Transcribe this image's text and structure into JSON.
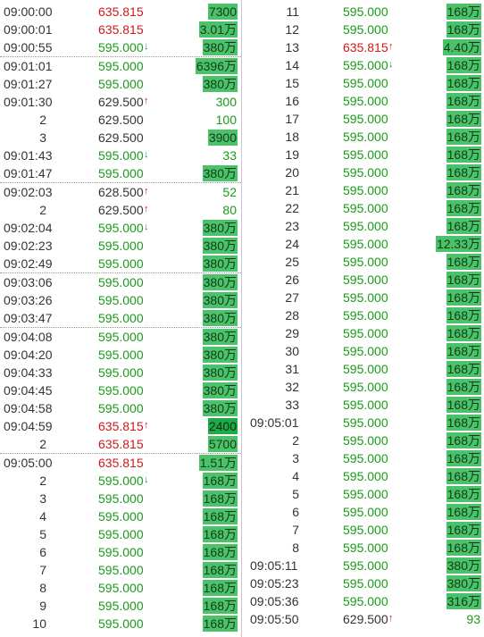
{
  "left_rows": [
    {
      "time": "09:00:00",
      "price": "635.815",
      "pc": "r",
      "dir": "",
      "vol": "7300",
      "vh": "hl",
      "sep": false,
      "idx": false
    },
    {
      "time": "09:00:01",
      "price": "635.815",
      "pc": "r",
      "dir": "",
      "vol": "3.01万",
      "vh": "hl",
      "sep": false,
      "idx": false
    },
    {
      "time": "09:00:55",
      "price": "595.000",
      "pc": "g",
      "dir": "down",
      "vol": "380万",
      "vh": "hl",
      "sep": false,
      "idx": false
    },
    {
      "time": "09:01:01",
      "price": "595.000",
      "pc": "g",
      "dir": "",
      "vol": "6396万",
      "vh": "hl",
      "sep": true,
      "idx": false
    },
    {
      "time": "09:01:27",
      "price": "595.000",
      "pc": "g",
      "dir": "",
      "vol": "380万",
      "vh": "hl",
      "sep": false,
      "idx": false
    },
    {
      "time": "09:01:30",
      "price": "629.500",
      "pc": "k",
      "dir": "up",
      "vol": "300",
      "vh": "",
      "sep": false,
      "idx": false
    },
    {
      "time": "2",
      "price": "629.500",
      "pc": "k",
      "dir": "",
      "vol": "100",
      "vh": "",
      "sep": false,
      "idx": true
    },
    {
      "time": "3",
      "price": "629.500",
      "pc": "k",
      "dir": "",
      "vol": "3900",
      "vh": "hl",
      "sep": false,
      "idx": true
    },
    {
      "time": "09:01:43",
      "price": "595.000",
      "pc": "g",
      "dir": "down",
      "vol": "33",
      "vh": "",
      "sep": false,
      "idx": false
    },
    {
      "time": "09:01:47",
      "price": "595.000",
      "pc": "g",
      "dir": "",
      "vol": "380万",
      "vh": "hl",
      "sep": false,
      "idx": false
    },
    {
      "time": "09:02:03",
      "price": "628.500",
      "pc": "k",
      "dir": "up",
      "vol": "52",
      "vh": "",
      "sep": true,
      "idx": false
    },
    {
      "time": "2",
      "price": "629.500",
      "pc": "k",
      "dir": "up",
      "vol": "80",
      "vh": "",
      "sep": false,
      "idx": true
    },
    {
      "time": "09:02:04",
      "price": "595.000",
      "pc": "g",
      "dir": "down",
      "vol": "380万",
      "vh": "hl",
      "sep": false,
      "idx": false
    },
    {
      "time": "09:02:23",
      "price": "595.000",
      "pc": "g",
      "dir": "",
      "vol": "380万",
      "vh": "hl",
      "sep": false,
      "idx": false
    },
    {
      "time": "09:02:49",
      "price": "595.000",
      "pc": "g",
      "dir": "",
      "vol": "380万",
      "vh": "hl",
      "sep": false,
      "idx": false
    },
    {
      "time": "09:03:06",
      "price": "595.000",
      "pc": "g",
      "dir": "",
      "vol": "380万",
      "vh": "hl",
      "sep": true,
      "idx": false
    },
    {
      "time": "09:03:26",
      "price": "595.000",
      "pc": "g",
      "dir": "",
      "vol": "380万",
      "vh": "hl",
      "sep": false,
      "idx": false
    },
    {
      "time": "09:03:47",
      "price": "595.000",
      "pc": "g",
      "dir": "",
      "vol": "380万",
      "vh": "hl",
      "sep": false,
      "idx": false
    },
    {
      "time": "09:04:08",
      "price": "595.000",
      "pc": "g",
      "dir": "",
      "vol": "380万",
      "vh": "hl",
      "sep": true,
      "idx": false
    },
    {
      "time": "09:04:20",
      "price": "595.000",
      "pc": "g",
      "dir": "",
      "vol": "380万",
      "vh": "hl",
      "sep": false,
      "idx": false
    },
    {
      "time": "09:04:33",
      "price": "595.000",
      "pc": "g",
      "dir": "",
      "vol": "380万",
      "vh": "hl",
      "sep": false,
      "idx": false
    },
    {
      "time": "09:04:45",
      "price": "595.000",
      "pc": "g",
      "dir": "",
      "vol": "380万",
      "vh": "hl",
      "sep": false,
      "idx": false
    },
    {
      "time": "09:04:58",
      "price": "595.000",
      "pc": "g",
      "dir": "",
      "vol": "380万",
      "vh": "hl",
      "sep": false,
      "idx": false
    },
    {
      "time": "09:04:59",
      "price": "635.815",
      "pc": "r",
      "dir": "up",
      "vol": "2400",
      "vh": "hl2",
      "sep": false,
      "idx": false
    },
    {
      "time": "2",
      "price": "635.815",
      "pc": "r",
      "dir": "",
      "vol": "5700",
      "vh": "hl",
      "sep": false,
      "idx": true
    },
    {
      "time": "09:05:00",
      "price": "635.815",
      "pc": "r",
      "dir": "",
      "vol": "1.51万",
      "vh": "hl",
      "sep": true,
      "idx": false
    },
    {
      "time": "2",
      "price": "595.000",
      "pc": "g",
      "dir": "down",
      "vol": "168万",
      "vh": "hl",
      "sep": false,
      "idx": true
    },
    {
      "time": "3",
      "price": "595.000",
      "pc": "g",
      "dir": "",
      "vol": "168万",
      "vh": "hl",
      "sep": false,
      "idx": true
    },
    {
      "time": "4",
      "price": "595.000",
      "pc": "g",
      "dir": "",
      "vol": "168万",
      "vh": "hl",
      "sep": false,
      "idx": true
    },
    {
      "time": "5",
      "price": "595.000",
      "pc": "g",
      "dir": "",
      "vol": "168万",
      "vh": "hl",
      "sep": false,
      "idx": true
    },
    {
      "time": "6",
      "price": "595.000",
      "pc": "g",
      "dir": "",
      "vol": "168万",
      "vh": "hl",
      "sep": false,
      "idx": true
    },
    {
      "time": "7",
      "price": "595.000",
      "pc": "g",
      "dir": "",
      "vol": "168万",
      "vh": "hl",
      "sep": false,
      "idx": true
    },
    {
      "time": "8",
      "price": "595.000",
      "pc": "g",
      "dir": "",
      "vol": "168万",
      "vh": "hl",
      "sep": false,
      "idx": true
    },
    {
      "time": "9",
      "price": "595.000",
      "pc": "g",
      "dir": "",
      "vol": "168万",
      "vh": "hl",
      "sep": false,
      "idx": true
    },
    {
      "time": "10",
      "price": "595.000",
      "pc": "g",
      "dir": "",
      "vol": "168万",
      "vh": "hl",
      "sep": false,
      "idx": true
    }
  ],
  "right_rows": [
    {
      "time": "11",
      "price": "595.000",
      "pc": "g",
      "dir": "",
      "vol": "168万",
      "vh": "hl",
      "sep": false,
      "idx": true
    },
    {
      "time": "12",
      "price": "595.000",
      "pc": "g",
      "dir": "",
      "vol": "168万",
      "vh": "hl",
      "sep": false,
      "idx": true
    },
    {
      "time": "13",
      "price": "635.815",
      "pc": "r",
      "dir": "up",
      "vol": "4.40万",
      "vh": "hl",
      "sep": false,
      "idx": true
    },
    {
      "time": "14",
      "price": "595.000",
      "pc": "g",
      "dir": "down",
      "vol": "168万",
      "vh": "hl",
      "sep": false,
      "idx": true
    },
    {
      "time": "15",
      "price": "595.000",
      "pc": "g",
      "dir": "",
      "vol": "168万",
      "vh": "hl",
      "sep": false,
      "idx": true
    },
    {
      "time": "16",
      "price": "595.000",
      "pc": "g",
      "dir": "",
      "vol": "168万",
      "vh": "hl",
      "sep": false,
      "idx": true
    },
    {
      "time": "17",
      "price": "595.000",
      "pc": "g",
      "dir": "",
      "vol": "168万",
      "vh": "hl",
      "sep": false,
      "idx": true
    },
    {
      "time": "18",
      "price": "595.000",
      "pc": "g",
      "dir": "",
      "vol": "168万",
      "vh": "hl",
      "sep": false,
      "idx": true
    },
    {
      "time": "19",
      "price": "595.000",
      "pc": "g",
      "dir": "",
      "vol": "168万",
      "vh": "hl",
      "sep": false,
      "idx": true
    },
    {
      "time": "20",
      "price": "595.000",
      "pc": "g",
      "dir": "",
      "vol": "168万",
      "vh": "hl",
      "sep": false,
      "idx": true
    },
    {
      "time": "21",
      "price": "595.000",
      "pc": "g",
      "dir": "",
      "vol": "168万",
      "vh": "hl",
      "sep": false,
      "idx": true
    },
    {
      "time": "22",
      "price": "595.000",
      "pc": "g",
      "dir": "",
      "vol": "168万",
      "vh": "hl",
      "sep": false,
      "idx": true
    },
    {
      "time": "23",
      "price": "595.000",
      "pc": "g",
      "dir": "",
      "vol": "168万",
      "vh": "hl",
      "sep": false,
      "idx": true
    },
    {
      "time": "24",
      "price": "595.000",
      "pc": "g",
      "dir": "",
      "vol": "12.33万",
      "vh": "hl",
      "sep": false,
      "idx": true
    },
    {
      "time": "25",
      "price": "595.000",
      "pc": "g",
      "dir": "",
      "vol": "168万",
      "vh": "hl",
      "sep": false,
      "idx": true
    },
    {
      "time": "26",
      "price": "595.000",
      "pc": "g",
      "dir": "",
      "vol": "168万",
      "vh": "hl",
      "sep": false,
      "idx": true
    },
    {
      "time": "27",
      "price": "595.000",
      "pc": "g",
      "dir": "",
      "vol": "168万",
      "vh": "hl",
      "sep": false,
      "idx": true
    },
    {
      "time": "28",
      "price": "595.000",
      "pc": "g",
      "dir": "",
      "vol": "168万",
      "vh": "hl",
      "sep": false,
      "idx": true
    },
    {
      "time": "29",
      "price": "595.000",
      "pc": "g",
      "dir": "",
      "vol": "168万",
      "vh": "hl",
      "sep": false,
      "idx": true
    },
    {
      "time": "30",
      "price": "595.000",
      "pc": "g",
      "dir": "",
      "vol": "168万",
      "vh": "hl",
      "sep": false,
      "idx": true
    },
    {
      "time": "31",
      "price": "595.000",
      "pc": "g",
      "dir": "",
      "vol": "168万",
      "vh": "hl",
      "sep": false,
      "idx": true
    },
    {
      "time": "32",
      "price": "595.000",
      "pc": "g",
      "dir": "",
      "vol": "168万",
      "vh": "hl",
      "sep": false,
      "idx": true
    },
    {
      "time": "33",
      "price": "595.000",
      "pc": "g",
      "dir": "",
      "vol": "168万",
      "vh": "hl",
      "sep": false,
      "idx": true
    },
    {
      "time": "09:05:01",
      "price": "595.000",
      "pc": "g",
      "dir": "",
      "vol": "168万",
      "vh": "hl",
      "sep": false,
      "idx": false
    },
    {
      "time": "2",
      "price": "595.000",
      "pc": "g",
      "dir": "",
      "vol": "168万",
      "vh": "hl",
      "sep": false,
      "idx": true
    },
    {
      "time": "3",
      "price": "595.000",
      "pc": "g",
      "dir": "",
      "vol": "168万",
      "vh": "hl",
      "sep": false,
      "idx": true
    },
    {
      "time": "4",
      "price": "595.000",
      "pc": "g",
      "dir": "",
      "vol": "168万",
      "vh": "hl",
      "sep": false,
      "idx": true
    },
    {
      "time": "5",
      "price": "595.000",
      "pc": "g",
      "dir": "",
      "vol": "168万",
      "vh": "hl",
      "sep": false,
      "idx": true
    },
    {
      "time": "6",
      "price": "595.000",
      "pc": "g",
      "dir": "",
      "vol": "168万",
      "vh": "hl",
      "sep": false,
      "idx": true
    },
    {
      "time": "7",
      "price": "595.000",
      "pc": "g",
      "dir": "",
      "vol": "168万",
      "vh": "hl",
      "sep": false,
      "idx": true
    },
    {
      "time": "8",
      "price": "595.000",
      "pc": "g",
      "dir": "",
      "vol": "168万",
      "vh": "hl",
      "sep": false,
      "idx": true
    },
    {
      "time": "09:05:11",
      "price": "595.000",
      "pc": "g",
      "dir": "",
      "vol": "380万",
      "vh": "hl",
      "sep": false,
      "idx": false
    },
    {
      "time": "09:05:23",
      "price": "595.000",
      "pc": "g",
      "dir": "",
      "vol": "380万",
      "vh": "hl",
      "sep": false,
      "idx": false
    },
    {
      "time": "09:05:36",
      "price": "595.000",
      "pc": "g",
      "dir": "",
      "vol": "316万",
      "vh": "hl",
      "sep": false,
      "idx": false
    },
    {
      "time": "09:05:50",
      "price": "629.500",
      "pc": "k",
      "dir": "up",
      "vol": "93",
      "vh": "",
      "sep": false,
      "idx": false
    }
  ],
  "icons": {
    "up": "arrow-up-icon",
    "down": "arrow-down-icon"
  },
  "colors": {
    "up_red": "#d21414",
    "down_green": "#169c16",
    "price_red": "#cc1a1a",
    "price_green": "#1a9a1a",
    "volume_highlight": "#4bc26a",
    "volume_highlight_strong": "#1faa4a"
  }
}
